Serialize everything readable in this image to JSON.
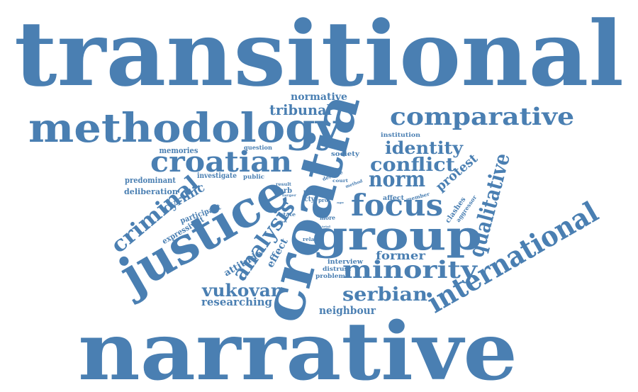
{
  "colors": {
    "word": "#4a7fb2",
    "background": "#ffffff"
  },
  "words": [
    "transitional",
    "narrative",
    "justice",
    "croatia",
    "methodology",
    "group",
    "croatian",
    "focus",
    "comparative",
    "minority",
    "international",
    "qualitative",
    "criminal",
    "analysis",
    "norm",
    "identity",
    "conflict",
    "serbian",
    "vukovar",
    "tribunal",
    "normative",
    "researching",
    "neighbour",
    "former",
    "protest",
    "cyrillic",
    "memories",
    "predominant",
    "deliberation",
    "participant",
    "expressivist",
    "attitude",
    "effect",
    "investigate",
    "question",
    "public",
    "institution",
    "society",
    "defence",
    "court",
    "method",
    "result",
    "larger",
    "post",
    "icty",
    "proc",
    "serb",
    "state",
    "more",
    "related",
    "interview",
    "problem",
    "distrust",
    "affect",
    "member",
    "clashes",
    "aggressor",
    "ago",
    "trial",
    "effort"
  ]
}
